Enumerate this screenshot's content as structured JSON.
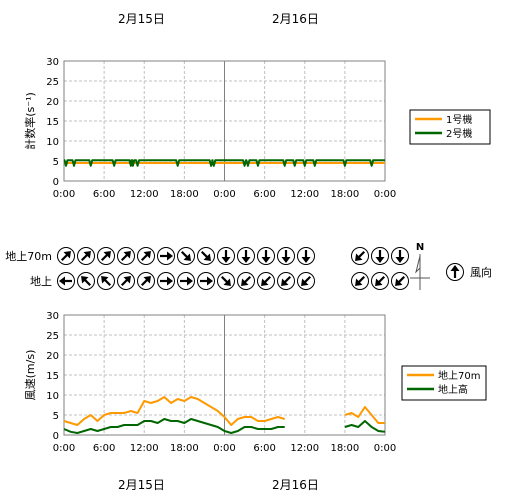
{
  "dates": [
    "2月15日",
    "2月16日"
  ],
  "colors": {
    "series1": "#ff9900",
    "series2": "#006600",
    "grid": "#c0c0c0",
    "day_divider": "#808080"
  },
  "compass": {
    "north_label": "N"
  },
  "wind_dir_legend": {
    "label": "風向",
    "icon": "arrow-up-icon"
  },
  "wind_dir_rows": [
    {
      "label": "地上70m",
      "dirs": [
        "NE",
        "NE",
        "NE",
        "NE",
        "NE",
        "E",
        "SE",
        "SE",
        "S",
        "S",
        "S",
        "S",
        "S",
        "SW",
        "S",
        "S"
      ]
    },
    {
      "label": "地上",
      "dirs": [
        "W",
        "NW",
        "NW",
        "NE",
        "NE",
        "E",
        "E",
        "E",
        "SE",
        "SW",
        "SW",
        "SW",
        "SW",
        "SW",
        "SW",
        "SW"
      ]
    }
  ],
  "chart_data": [
    {
      "type": "line",
      "ylabel": "計数率(s⁻¹)",
      "ylim": [
        0,
        30
      ],
      "yticks": [
        0,
        5,
        10,
        15,
        20,
        25,
        30
      ],
      "xlim": [
        0,
        48
      ],
      "xtick_labels": [
        "0:00",
        "6:00",
        "12:00",
        "18:00",
        "0:00",
        "6:00",
        "12:00",
        "18:00",
        "0:00"
      ],
      "grid": true,
      "legend": "right",
      "series": [
        {
          "name": "1号機",
          "color": "#ff9900",
          "x": [
            0,
            48
          ],
          "y": [
            4.5,
            4.5
          ]
        },
        {
          "name": "2号機",
          "color": "#006600",
          "x": [
            0,
            48
          ],
          "y": [
            5.2,
            5.2
          ],
          "dips": [
            0.3,
            1.5,
            4.0,
            7.5,
            10.0,
            10.3,
            11.0,
            17.0,
            22.0,
            22.4,
            27.0,
            27.5,
            29.0,
            33.0,
            34.5,
            36.0,
            37.5,
            42.0,
            46.0
          ],
          "dip_value": 3.8
        }
      ]
    },
    {
      "type": "line",
      "ylabel": "風速(m/s)",
      "ylim": [
        0,
        30
      ],
      "yticks": [
        0,
        5,
        10,
        15,
        20,
        25,
        30
      ],
      "xlim": [
        0,
        48
      ],
      "xtick_labels": [
        "0:00",
        "6:00",
        "12:00",
        "18:00",
        "0:00",
        "6:00",
        "12:00",
        "18:00",
        "0:00"
      ],
      "grid": true,
      "legend": "right",
      "series": [
        {
          "name": "地上70m",
          "color": "#ff9900",
          "segments": [
            {
              "x": [
                0,
                1,
                2,
                3,
                4,
                5,
                6,
                7,
                8,
                9,
                10,
                11,
                12,
                13,
                14,
                15,
                16,
                17,
                18,
                19,
                20,
                21,
                22,
                23,
                24,
                25,
                26,
                27,
                28,
                29,
                30,
                31,
                32,
                33
              ],
              "y": [
                3.5,
                3,
                2.5,
                4,
                5,
                3.5,
                5,
                5.5,
                5.5,
                5.5,
                6,
                5.5,
                8.5,
                8,
                8.5,
                9.5,
                8,
                9,
                8.5,
                9.5,
                9,
                8,
                7,
                6,
                4.5,
                2.5,
                4,
                4.5,
                4.5,
                3.5,
                3.5,
                4,
                4.5,
                4
              ]
            },
            {
              "x": [
                42,
                43,
                44,
                45,
                46,
                47,
                48
              ],
              "y": [
                5,
                5.5,
                4.5,
                7,
                5,
                3,
                3
              ]
            }
          ]
        },
        {
          "name": "地上高",
          "color": "#006600",
          "segments": [
            {
              "x": [
                0,
                1,
                2,
                3,
                4,
                5,
                6,
                7,
                8,
                9,
                10,
                11,
                12,
                13,
                14,
                15,
                16,
                17,
                18,
                19,
                20,
                21,
                22,
                23,
                24,
                25,
                26,
                27,
                28,
                29,
                30,
                31,
                32,
                33
              ],
              "y": [
                1.5,
                0.8,
                0.5,
                1,
                1.5,
                1,
                1.5,
                2,
                2,
                2.5,
                2.5,
                2.5,
                3.5,
                3.5,
                3,
                4,
                3.5,
                3.5,
                3,
                4,
                3.5,
                3,
                2.5,
                2,
                1,
                0.5,
                1,
                2,
                2,
                1.5,
                1.5,
                1.5,
                2,
                2
              ]
            },
            {
              "x": [
                42,
                43,
                44,
                45,
                46,
                47,
                48
              ],
              "y": [
                2,
                2.5,
                2,
                3.5,
                2,
                1,
                0.8
              ]
            }
          ]
        }
      ]
    }
  ]
}
